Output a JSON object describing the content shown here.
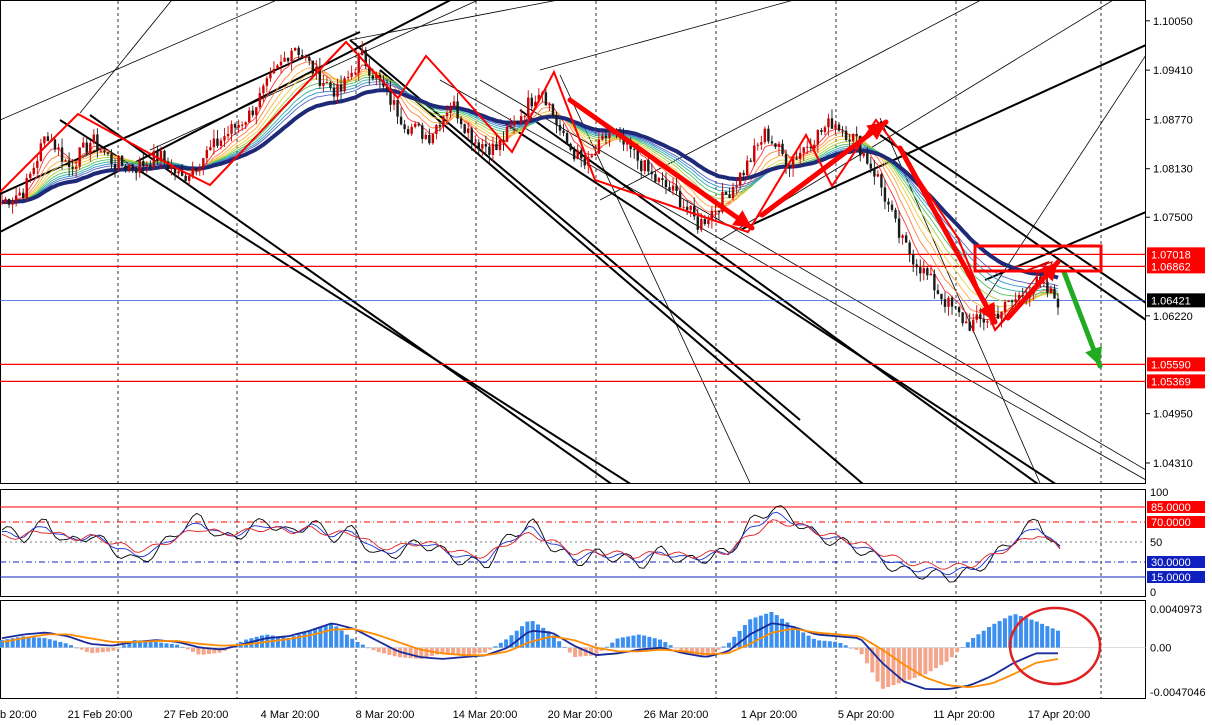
{
  "colors": {
    "bull": "#cc0000",
    "bear": "#1a1a1a",
    "ema_slow": "#1e2a78",
    "red_line": "#ff0000",
    "blue_line": "#2d5bd8",
    "macd_pos": "#3a8ff0",
    "macd_neg": "#f4a58a",
    "signal": "#ff8c00",
    "green_arrow": "#22aa22"
  },
  "chart_data": [
    {
      "type": "candlestick",
      "pane": "price",
      "y_ticks": [
        "1.10050",
        "1.09410",
        "1.08770",
        "1.08130",
        "1.07500",
        "1.06220",
        "1.04950",
        "1.04310"
      ],
      "ylim": [
        1.0405,
        1.1032
      ],
      "x_ticks": [
        "b 20:00",
        "21 Feb 20:00",
        "27 Feb 20:00",
        "4 Mar 20:00",
        "8 Mar 20:00",
        "14 Mar 20:00",
        "20 Mar 20:00",
        "26 Mar 20:00",
        "1 Apr 20:00",
        "5 Apr 20:00",
        "11 Apr 20:00",
        "17 Apr 20:00"
      ],
      "current_price": "1.06421",
      "horizontal_levels": [
        {
          "value": 1.07018,
          "label": "1.07018"
        },
        {
          "value": 1.06862,
          "label": "1.06862"
        },
        {
          "value": 1.0559,
          "label": "1.05590"
        },
        {
          "value": 1.05369,
          "label": "1.05369"
        }
      ],
      "close_path": [
        1.077,
        1.0785,
        1.086,
        1.0815,
        1.085,
        1.082,
        1.0815,
        1.083,
        1.08,
        1.083,
        1.0858,
        1.0883,
        1.093,
        1.0975,
        1.0935,
        1.091,
        1.096,
        1.0915,
        1.087,
        1.0855,
        1.09,
        1.085,
        1.0838,
        1.088,
        1.092,
        1.085,
        1.0815,
        1.086,
        1.0835,
        1.08,
        1.078,
        1.074,
        1.077,
        1.081,
        1.086,
        1.082,
        1.085,
        1.0875,
        1.085,
        1.08,
        1.072,
        1.068,
        1.064,
        1.061,
        1.062,
        1.064,
        1.0665,
        1.0642
      ]
    },
    {
      "type": "line",
      "pane": "oscillator",
      "y_ticks": [
        "100",
        "85.0000",
        "70.0000",
        "50",
        "30.0000",
        "15.0000",
        "0"
      ],
      "ylim": [
        0,
        100
      ],
      "levels": [
        85,
        70,
        30,
        15
      ],
      "series": [
        {
          "values": [
            62,
            55,
            70,
            48,
            58,
            44,
            30,
            40,
            62,
            75,
            52,
            60,
            72,
            58,
            70,
            55,
            62,
            35,
            40,
            50,
            40,
            30,
            28,
            55,
            70,
            45,
            30,
            38,
            35,
            28,
            42,
            30,
            35,
            40,
            70,
            85,
            72,
            55,
            50,
            42,
            30,
            20,
            18,
            15,
            20,
            35,
            55,
            72,
            40
          ]
        },
        {
          "values": [
            58,
            57,
            66,
            52,
            56,
            48,
            36,
            42,
            58,
            70,
            56,
            60,
            68,
            60,
            66,
            57,
            60,
            40,
            42,
            50,
            42,
            34,
            32,
            52,
            64,
            48,
            34,
            38,
            36,
            32,
            40,
            33,
            36,
            40,
            64,
            78,
            70,
            58,
            52,
            45,
            34,
            24,
            22,
            20,
            23,
            36,
            52,
            66,
            42
          ]
        },
        {
          "values": [
            55,
            56,
            62,
            54,
            55,
            50,
            42,
            45,
            55,
            64,
            58,
            60,
            64,
            61,
            63,
            58,
            59,
            45,
            45,
            50,
            45,
            38,
            36,
            50,
            58,
            50,
            39,
            40,
            38,
            36,
            40,
            36,
            38,
            41,
            58,
            70,
            68,
            60,
            54,
            48,
            38,
            30,
            27,
            25,
            27,
            37,
            48,
            58,
            44
          ]
        }
      ]
    },
    {
      "type": "bar",
      "pane": "macd",
      "y_ticks": [
        "0.0040973",
        "0.00",
        "-0.0047046"
      ],
      "ylim": [
        -0.0047046,
        0.0040973
      ],
      "histogram": [
        0.0008,
        0.0012,
        0.001,
        0.0004,
        -0.0006,
        -0.0004,
        0.0008,
        0.0006,
        0.0003,
        -0.0008,
        -0.0005,
        0.0008,
        0.0014,
        0.001,
        0.0018,
        0.0026,
        0.0008,
        -0.0004,
        -0.001,
        -0.0012,
        -0.0006,
        -0.0008,
        -0.0005,
        0.001,
        0.003,
        0.0015,
        -0.001,
        -0.0008,
        0.001,
        0.0014,
        0.0008,
        -0.0006,
        -0.001,
        0.0004,
        0.003,
        0.0038,
        0.0022,
        0.0008,
        0.0006,
        -0.0004,
        -0.0044,
        -0.0036,
        -0.0028,
        -0.0014,
        0.0008,
        0.0024,
        0.0036,
        0.0028,
        0.0018
      ],
      "series": [
        {
          "values": [
            0.001,
            0.0014,
            0.0016,
            0.0012,
            0.0004,
            0.0002,
            0.0006,
            0.0008,
            0.0006,
            0.0,
            -0.0002,
            0.0004,
            0.001,
            0.0012,
            0.0018,
            0.0026,
            0.002,
            0.0008,
            -0.0004,
            -0.001,
            -0.0012,
            -0.001,
            -0.0008,
            0.0,
            0.0018,
            0.0016,
            0.0002,
            -0.0008,
            -0.0006,
            -0.0002,
            0.0,
            -0.0006,
            -0.001,
            -0.0004,
            0.0014,
            0.0026,
            0.0022,
            0.0014,
            0.0012,
            0.001,
            -0.0016,
            -0.0036,
            -0.0044,
            -0.0044,
            -0.004,
            -0.003,
            -0.0016,
            -0.0006,
            -0.0006
          ]
        },
        {
          "values": [
            0.0006,
            0.001,
            0.0014,
            0.0014,
            0.001,
            0.0006,
            0.0006,
            0.0007,
            0.0007,
            0.0004,
            0.0002,
            0.0003,
            0.0006,
            0.0009,
            0.0013,
            0.0019,
            0.002,
            0.0014,
            0.0006,
            -0.0002,
            -0.0006,
            -0.0008,
            -0.0008,
            -0.0004,
            0.0006,
            0.0012,
            0.0008,
            0.0,
            -0.0004,
            -0.0004,
            -0.0002,
            -0.0004,
            -0.0007,
            -0.0006,
            0.0004,
            0.0016,
            0.002,
            0.0016,
            0.0014,
            0.0012,
            -0.0002,
            -0.0018,
            -0.0032,
            -0.004,
            -0.0042,
            -0.0038,
            -0.0028,
            -0.0016,
            -0.0012
          ]
        }
      ]
    }
  ]
}
